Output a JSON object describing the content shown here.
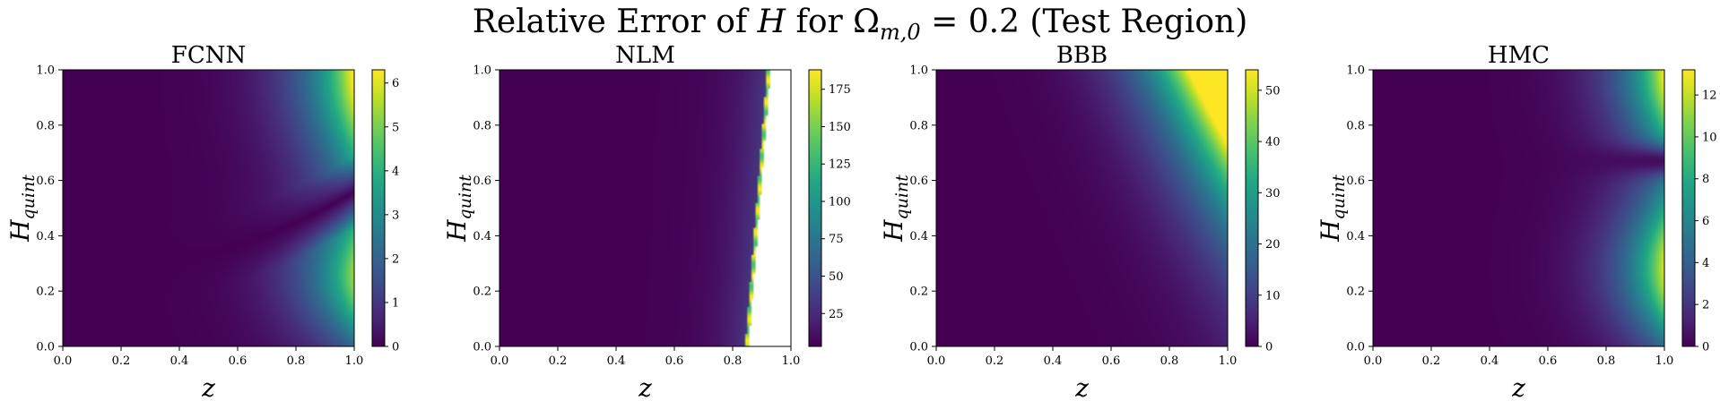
{
  "figure": {
    "suptitle": "Relative Error of H for Ωm,0 = 0.2 (Test Region)",
    "suptitle_parts": {
      "before": "Relative Error of ",
      "var": "H",
      "mid": " for ",
      "omega": "Ω",
      "omega_sub": "m,0",
      "after": " = 0.2 (Test Region)"
    }
  },
  "chart_data": [
    {
      "type": "heatmap",
      "title": "FCNN",
      "xlabel": "z",
      "ylabel": "H",
      "ylabel_sub": "quint",
      "xlim": [
        0,
        1
      ],
      "ylim": [
        0,
        1
      ],
      "xticks": [
        "0.0",
        "0.2",
        "0.4",
        "0.6",
        "0.8",
        "1.0"
      ],
      "yticks": [
        "0.0",
        "0.2",
        "0.4",
        "0.6",
        "0.8",
        "1.0"
      ],
      "colorbar": {
        "min": 0,
        "max": 6.3,
        "ticks": [
          0,
          1,
          2,
          3,
          4,
          5,
          6
        ],
        "cmap": "viridis"
      },
      "pattern": "fcnn"
    },
    {
      "type": "heatmap",
      "title": "NLM",
      "xlabel": "z",
      "ylabel": "H",
      "ylabel_sub": "quint",
      "xlim": [
        0,
        1
      ],
      "ylim": [
        0,
        1
      ],
      "xticks": [
        "0.0",
        "0.2",
        "0.4",
        "0.6",
        "0.8",
        "1.0"
      ],
      "yticks": [
        "0.0",
        "0.2",
        "0.4",
        "0.6",
        "0.8",
        "1.0"
      ],
      "colorbar": {
        "min": 3,
        "max": 188,
        "ticks": [
          25,
          50,
          75,
          100,
          125,
          150,
          175
        ],
        "cmap": "viridis"
      },
      "pattern": "nlm"
    },
    {
      "type": "heatmap",
      "title": "BBB",
      "xlabel": "z",
      "ylabel": "H",
      "ylabel_sub": "quint",
      "xlim": [
        0,
        1
      ],
      "ylim": [
        0,
        1
      ],
      "xticks": [
        "0.0",
        "0.2",
        "0.4",
        "0.6",
        "0.8",
        "1.0"
      ],
      "yticks": [
        "0.0",
        "0.2",
        "0.4",
        "0.6",
        "0.8",
        "1.0"
      ],
      "colorbar": {
        "min": 0,
        "max": 54,
        "ticks": [
          0,
          10,
          20,
          30,
          40,
          50
        ],
        "cmap": "viridis"
      },
      "pattern": "bbb"
    },
    {
      "type": "heatmap",
      "title": "HMC",
      "xlabel": "z",
      "ylabel": "H",
      "ylabel_sub": "quint",
      "xlim": [
        0,
        1
      ],
      "ylim": [
        0,
        1
      ],
      "xticks": [
        "0.0",
        "0.2",
        "0.4",
        "0.6",
        "0.8",
        "1.0"
      ],
      "yticks": [
        "0.0",
        "0.2",
        "0.4",
        "0.6",
        "0.8",
        "1.0"
      ],
      "colorbar": {
        "min": 0,
        "max": 13.2,
        "ticks": [
          0,
          2,
          4,
          6,
          8,
          10,
          12
        ],
        "cmap": "viridis"
      },
      "pattern": "hmc"
    }
  ]
}
